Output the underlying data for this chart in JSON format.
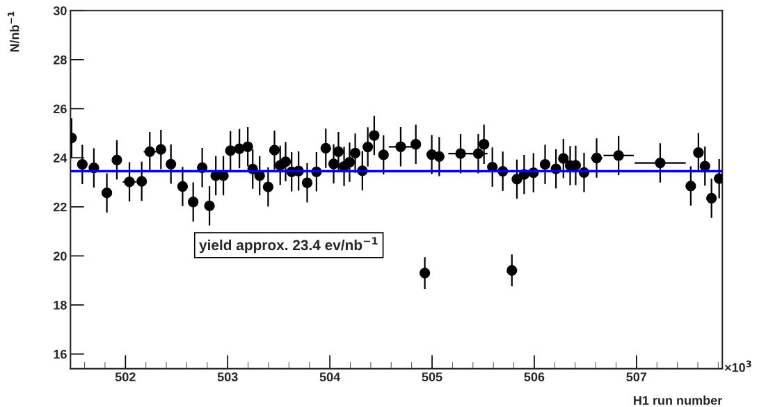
{
  "chart_data": {
    "type": "scatter",
    "xlabel": "H1 run number",
    "ylabel": "N/nb$^{−1}$",
    "x": [
      501.473,
      501.578,
      501.691,
      501.818,
      501.916,
      502.039,
      502.159,
      502.238,
      502.347,
      502.445,
      502.559,
      502.663,
      502.751,
      502.822,
      502.884,
      502.958,
      503.027,
      503.115,
      503.197,
      503.245,
      503.313,
      503.396,
      503.458,
      503.514,
      503.567,
      503.626,
      503.694,
      503.778,
      503.869,
      503.96,
      504.037,
      504.084,
      504.139,
      504.193,
      504.248,
      504.318,
      504.371,
      504.434,
      504.525,
      504.693,
      504.841,
      504.929,
      504.997,
      505.07,
      505.279,
      505.452,
      505.508,
      505.59,
      505.692,
      505.781,
      505.83,
      505.901,
      505.992,
      506.106,
      506.212,
      506.285,
      506.351,
      506.405,
      506.487,
      506.61,
      506.825,
      507.232,
      507.531,
      507.606,
      507.67,
      507.734,
      507.809
    ],
    "series": [
      {
        "color": "#000000",
        "values": [
          24.81,
          23.73,
          23.59,
          22.57,
          23.91,
          23.02,
          23.04,
          24.25,
          24.34,
          23.74,
          22.83,
          22.2,
          23.6,
          22.04,
          23.27,
          23.27,
          24.29,
          24.37,
          24.45,
          23.54,
          23.27,
          22.81,
          24.31,
          23.69,
          23.84,
          23.43,
          23.46,
          22.98,
          23.43,
          24.39,
          23.75,
          24.25,
          23.65,
          23.82,
          24.19,
          23.47,
          24.44,
          24.91,
          24.12,
          24.45,
          24.55,
          19.3,
          24.13,
          24.05,
          24.17,
          24.17,
          24.55,
          23.62,
          23.45,
          19.41,
          23.13,
          23.32,
          23.39,
          23.73,
          23.55,
          23.97,
          23.68,
          23.69,
          23.4,
          23.99,
          24.09,
          23.79,
          22.85,
          24.21,
          23.66,
          22.35,
          23.15
        ],
        "errors": [
          0.8,
          0.8,
          0.8,
          0.8,
          0.8,
          0.8,
          0.8,
          0.8,
          0.8,
          0.8,
          0.8,
          0.8,
          0.8,
          0.8,
          0.8,
          0.8,
          0.8,
          0.8,
          0.8,
          0.8,
          0.8,
          0.8,
          0.8,
          0.8,
          0.8,
          0.8,
          0.8,
          0.8,
          0.8,
          0.8,
          0.8,
          0.8,
          0.8,
          0.8,
          0.8,
          0.8,
          0.8,
          0.8,
          0.8,
          0.8,
          0.8,
          0.65,
          0.8,
          0.8,
          0.8,
          0.8,
          0.8,
          0.8,
          0.8,
          0.65,
          0.8,
          0.8,
          0.8,
          0.8,
          0.8,
          0.8,
          0.8,
          0.8,
          0.8,
          0.8,
          0.8,
          0.8,
          0.8,
          0.8,
          0.8,
          0.8,
          0.8
        ],
        "xerrors": [
          null,
          null,
          null,
          null,
          null,
          0.065,
          null,
          0.06,
          null,
          null,
          null,
          null,
          null,
          null,
          null,
          null,
          null,
          null,
          null,
          null,
          null,
          null,
          null,
          null,
          null,
          null,
          null,
          null,
          null,
          null,
          null,
          null,
          null,
          null,
          null,
          null,
          null,
          null,
          null,
          0.116,
          null,
          null,
          null,
          null,
          0.12,
          0.09,
          null,
          null,
          null,
          null,
          null,
          null,
          null,
          null,
          null,
          null,
          null,
          null,
          null,
          0.057,
          0.148,
          0.25,
          null,
          null,
          null,
          null,
          null
        ]
      }
    ],
    "marker": "circle",
    "xlim": [
      501.462,
      507.84
    ],
    "xticks": [
      502,
      503,
      504,
      505,
      506,
      507
    ],
    "ylim": [
      15.4,
      30
    ],
    "yticks": [
      16,
      18,
      20,
      22,
      24,
      26,
      28,
      30
    ],
    "ref_lines": [
      {
        "axis": "y",
        "value": 23.45,
        "color": "#0000ff"
      }
    ],
    "annotations": [
      "yield approx. 23.4 ev/nb$^{−1}$",
      "×10$^{3}$"
    ],
    "grid": false
  }
}
